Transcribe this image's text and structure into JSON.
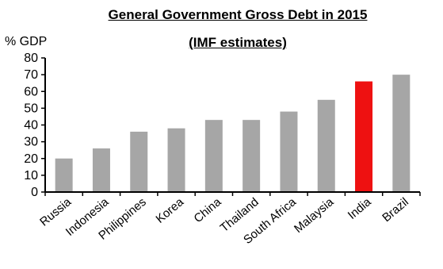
{
  "chart_data": {
    "type": "bar",
    "title": "General Government Gross Debt in 2015",
    "subtitle": "(IMF estimates)",
    "ylabel": "% GDP",
    "xlabel": "",
    "ylim": [
      0,
      80
    ],
    "yticks": [
      0,
      10,
      20,
      30,
      40,
      50,
      60,
      70,
      80
    ],
    "grid": false,
    "categories": [
      "Russia",
      "Indonesia",
      "Philippines",
      "Korea",
      "China",
      "Thailand",
      "South Africa",
      "Malaysia",
      "India",
      "Brazil"
    ],
    "values": [
      20,
      26,
      36,
      38,
      43,
      43,
      48,
      55,
      66,
      70
    ],
    "colors": {
      "default": "#a6a6a6",
      "highlight": "#ee1111",
      "highlight_category": "India"
    }
  }
}
